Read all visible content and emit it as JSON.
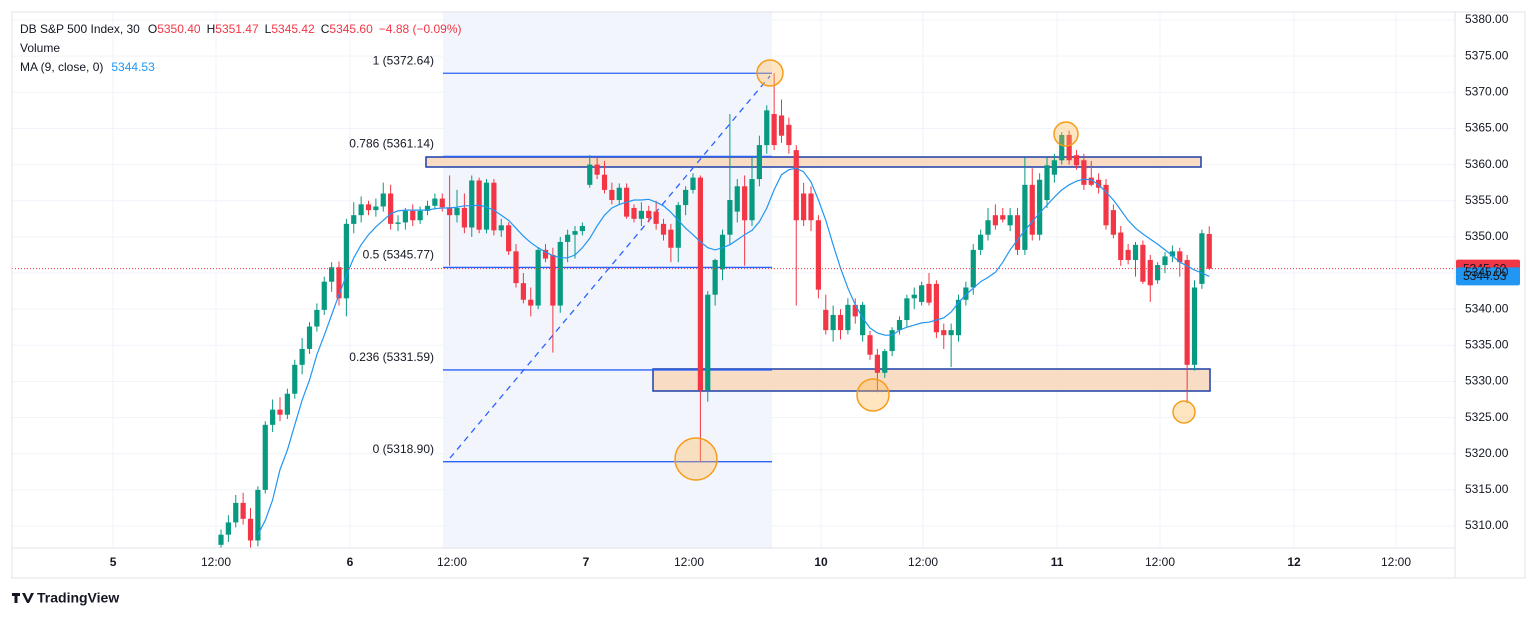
{
  "chart_data": {
    "type": "candlestick",
    "legend": {
      "symbol": "DB S&P 500 Index, 30",
      "ohlc": [
        {
          "key": "O",
          "text": "5350.40"
        },
        {
          "key": "H",
          "text": "5351.47"
        },
        {
          "key": "L",
          "text": "5345.42"
        },
        {
          "key": "C",
          "text": "5345.60"
        }
      ],
      "change": "−4.88 (−0.09%)",
      "value_color": "#f23645",
      "volume": "Volume",
      "ma_name": "MA (9, close, 0)",
      "ma_value": "5344.53"
    },
    "up_color": "#089981",
    "down_color": "#f23645",
    "ma_color": "#2196f3",
    "open": [
      5307.4,
      5308.8,
      5310.5,
      5313.2,
      5311.0,
      5308.0,
      5315.0,
      5324.0,
      5326.1,
      5325.4,
      5328.3,
      5332.3,
      5334.5,
      5337.6,
      5339.9,
      5343.8,
      5345.8,
      5341.5,
      5351.8,
      5353.0,
      5354.5,
      5353.7,
      5354.2,
      5356.0,
      5351.8,
      5352.0,
      5353.6,
      5352.3,
      5353.6,
      5354.3,
      5355.3,
      5354.1,
      5353.0,
      5354.0,
      5351.3,
      5357.8,
      5351.0,
      5357.5,
      5350.9,
      5351.6,
      5348.0,
      5343.6,
      5341.3,
      5340.5,
      5348.2,
      5347.5,
      5340.5,
      5349.3,
      5350.3,
      5350.8,
      5357.2,
      5360.0,
      5358.6,
      5356.5,
      5355.1,
      5356.8,
      5354.0,
      5352.5,
      5353.6,
      5353.5,
      5351.8,
      5351.0,
      5348.5,
      5354.4,
      5356.5,
      5358.2,
      5328.8,
      5342.0,
      5345.5,
      5350.3,
      5353.5,
      5357.0,
      5352.3,
      5358.0,
      5362.7,
      5367.0,
      5366.8,
      5365.5,
      5362.0,
      5356.0,
      5356.0,
      5352.3,
      5339.9,
      5337.1,
      5339.2,
      5337.1,
      5340.6,
      5336.4,
      5336.4,
      5333.7,
      5331.2,
      5334.2,
      5337.1,
      5338.5,
      5341.5,
      5341.0,
      5343.5,
      5343.5,
      5337.1,
      5336.4,
      5336.4,
      5341.3,
      5343.0,
      5348.2,
      5350.3,
      5353.0,
      5353.0,
      5351.6,
      5353.0,
      5348.2,
      5357.2,
      5350.3,
      5355.1,
      5358.6,
      5360.6,
      5364.1,
      5361.3,
      5360.6,
      5358.2,
      5357.9,
      5357.2,
      5353.7,
      5350.6,
      5348.2,
      5346.8,
      5348.9,
      5346.8,
      5344.0,
      5346.1,
      5347.3,
      5348.0,
      5346.8,
      5332.3,
      5343.5,
      5350.4
    ],
    "high": [
      5309.5,
      5311.5,
      5314.3,
      5314.6,
      5312.5,
      5315.5,
      5324.5,
      5327.5,
      5327.8,
      5329.0,
      5333.0,
      5336.0,
      5338.2,
      5340.8,
      5344.5,
      5346.5,
      5346.6,
      5352.5,
      5354.8,
      5355.6,
      5355.0,
      5355.3,
      5357.5,
      5357.2,
      5353.0,
      5354.0,
      5354.5,
      5354.2,
      5355.0,
      5356.0,
      5356.0,
      5358.5,
      5356.5,
      5356.0,
      5358.5,
      5358.2,
      5358.0,
      5358.0,
      5352.5,
      5352.0,
      5349.0,
      5345.0,
      5343.0,
      5348.6,
      5349.0,
      5348.5,
      5350.0,
      5351.0,
      5351.5,
      5352.0,
      5361.3,
      5361.0,
      5360.5,
      5357.5,
      5357.4,
      5357.4,
      5354.5,
      5354.8,
      5354.3,
      5355.0,
      5352.5,
      5351.8,
      5354.8,
      5357.0,
      5358.8,
      5358.5,
      5342.5,
      5347.0,
      5351.0,
      5367.0,
      5358.0,
      5358.5,
      5361.0,
      5364.0,
      5368.2,
      5372.64,
      5369.0,
      5366.5,
      5362.7,
      5357.5,
      5357.0,
      5353.0,
      5342.0,
      5340.5,
      5340.0,
      5341.5,
      5341.5,
      5341.0,
      5337.0,
      5334.5,
      5334.5,
      5337.5,
      5339.0,
      5342.0,
      5343.0,
      5343.8,
      5345.0,
      5344.0,
      5338.0,
      5338.0,
      5342.0,
      5343.8,
      5349.0,
      5351.0,
      5354.0,
      5354.5,
      5354.0,
      5354.0,
      5354.0,
      5361.0,
      5359.5,
      5358.8,
      5361.0,
      5361.5,
      5364.5,
      5364.7,
      5362.0,
      5361.5,
      5360.5,
      5358.8,
      5358.0,
      5354.5,
      5351.5,
      5349.0,
      5349.3,
      5349.5,
      5347.5,
      5346.5,
      5347.9,
      5348.8,
      5348.5,
      5347.5,
      5344.0,
      5351.0,
      5351.47
    ],
    "low": [
      5306.5,
      5307.8,
      5309.8,
      5310.2,
      5307.0,
      5307.2,
      5314.5,
      5323.0,
      5324.5,
      5324.8,
      5327.6,
      5331.0,
      5333.8,
      5336.9,
      5339.2,
      5342.4,
      5340.5,
      5339.0,
      5350.5,
      5352.0,
      5353.0,
      5352.8,
      5353.5,
      5351.0,
      5350.8,
      5351.0,
      5351.5,
      5351.8,
      5353.0,
      5353.8,
      5353.5,
      5346.0,
      5352.0,
      5350.5,
      5350.0,
      5350.5,
      5350.5,
      5350.2,
      5350.0,
      5347.5,
      5343.0,
      5340.8,
      5339.0,
      5340.0,
      5346.5,
      5334.0,
      5339.5,
      5346.5,
      5347.0,
      5350.2,
      5356.8,
      5358.0,
      5356.0,
      5354.5,
      5354.5,
      5352.5,
      5352.0,
      5351.5,
      5352.0,
      5351.0,
      5349.5,
      5346.5,
      5346.5,
      5353.0,
      5356.0,
      5318.9,
      5327.2,
      5340.5,
      5344.0,
      5349.0,
      5352.0,
      5346.0,
      5351.5,
      5357.0,
      5361.5,
      5362.0,
      5363.0,
      5361.5,
      5340.5,
      5351.5,
      5350.8,
      5341.5,
      5336.5,
      5335.5,
      5335.8,
      5336.5,
      5338.0,
      5335.5,
      5333.0,
      5328.5,
      5330.5,
      5333.5,
      5336.5,
      5337.5,
      5340.0,
      5340.5,
      5340.5,
      5336.0,
      5334.5,
      5332.0,
      5335.5,
      5340.5,
      5342.0,
      5347.5,
      5349.5,
      5351.0,
      5352.0,
      5350.8,
      5347.5,
      5347.5,
      5349.5,
      5349.5,
      5354.0,
      5357.5,
      5360.0,
      5360.0,
      5359.3,
      5356.5,
      5357.0,
      5356.0,
      5351.0,
      5349.8,
      5346.0,
      5346.2,
      5344.5,
      5343.5,
      5341.0,
      5343.5,
      5345.0,
      5346.5,
      5344.5,
      5327.0,
      5331.5,
      5342.8,
      5345.42
    ],
    "close": [
      5308.8,
      5310.5,
      5313.2,
      5311.0,
      5308.0,
      5315.0,
      5324.0,
      5326.1,
      5325.4,
      5328.3,
      5332.3,
      5334.5,
      5337.6,
      5339.9,
      5343.8,
      5345.8,
      5341.5,
      5351.8,
      5353.0,
      5354.5,
      5353.7,
      5354.2,
      5356.0,
      5351.8,
      5352.0,
      5353.6,
      5352.3,
      5353.6,
      5354.3,
      5355.3,
      5354.1,
      5353.0,
      5354.0,
      5351.3,
      5357.8,
      5351.0,
      5357.5,
      5350.9,
      5351.6,
      5348.0,
      5343.6,
      5341.3,
      5340.5,
      5348.2,
      5347.0,
      5340.5,
      5349.3,
      5350.3,
      5350.8,
      5351.5,
      5360.0,
      5358.6,
      5356.5,
      5355.1,
      5356.8,
      5352.8,
      5352.5,
      5353.6,
      5352.6,
      5351.8,
      5350.3,
      5348.5,
      5354.4,
      5356.5,
      5358.2,
      5328.8,
      5342.0,
      5346.8,
      5350.3,
      5355.1,
      5357.0,
      5352.3,
      5358.0,
      5362.7,
      5367.5,
      5362.7,
      5364.0,
      5362.7,
      5352.3,
      5352.3,
      5352.3,
      5342.7,
      5337.1,
      5339.2,
      5337.1,
      5340.6,
      5339.0,
      5340.6,
      5333.7,
      5331.2,
      5334.2,
      5337.1,
      5338.5,
      5341.5,
      5342.0,
      5343.3,
      5340.9,
      5336.8,
      5336.4,
      5337.1,
      5341.3,
      5343.0,
      5348.2,
      5350.3,
      5352.3,
      5351.6,
      5352.4,
      5353.0,
      5348.2,
      5357.2,
      5350.3,
      5357.9,
      5359.9,
      5360.6,
      5364.1,
      5360.6,
      5359.9,
      5357.2,
      5357.2,
      5356.8,
      5351.6,
      5350.3,
      5346.8,
      5346.8,
      5348.9,
      5343.8,
      5343.3,
      5346.1,
      5347.3,
      5348.0,
      5346.5,
      5332.3,
      5343.0,
      5350.5,
      5345.6
    ],
    "ma": [
      null,
      null,
      null,
      null,
      null,
      5308.8,
      5310.8,
      5313.6,
      5317.8,
      5320.5,
      5324.0,
      5327.4,
      5330.2,
      5333.7,
      5336.4,
      5339.2,
      5342.0,
      5344.7,
      5347.1,
      5348.9,
      5350.3,
      5351.4,
      5352.3,
      5353.2,
      5353.6,
      5353.7,
      5353.7,
      5353.7,
      5353.7,
      5353.9,
      5354.0,
      5354.0,
      5354.1,
      5354.3,
      5354.3,
      5354.4,
      5354.1,
      5353.7,
      5353.0,
      5352.3,
      5351.2,
      5350.1,
      5349.2,
      5348.5,
      5347.9,
      5347.4,
      5347.1,
      5347.1,
      5347.5,
      5348.5,
      5349.8,
      5351.5,
      5353.0,
      5354.0,
      5354.5,
      5354.8,
      5355.1,
      5355.1,
      5355.2,
      5354.8,
      5354.3,
      5353.4,
      5352.3,
      5351.2,
      5350.3,
      5349.3,
      5348.5,
      5348.2,
      5348.5,
      5348.9,
      5349.6,
      5350.3,
      5350.9,
      5352.1,
      5354.0,
      5356.5,
      5358.6,
      5359.3,
      5359.5,
      5359.0,
      5357.6,
      5355.1,
      5352.3,
      5348.9,
      5345.7,
      5342.9,
      5340.6,
      5338.8,
      5337.4,
      5336.7,
      5336.4,
      5336.4,
      5337.1,
      5337.5,
      5337.8,
      5338.1,
      5338.2,
      5338.5,
      5338.8,
      5339.6,
      5340.9,
      5342.0,
      5342.9,
      5343.8,
      5344.4,
      5345.1,
      5346.5,
      5348.2,
      5349.6,
      5350.9,
      5352.1,
      5353.3,
      5354.4,
      5355.5,
      5356.5,
      5357.2,
      5357.7,
      5358.0,
      5357.9,
      5357.2,
      5356.2,
      5355.1,
      5353.7,
      5352.3,
      5351.2,
      5350.4,
      5349.7,
      5349.0,
      5348.2,
      5347.4,
      5346.5,
      5346.0,
      5345.4,
      5345.0,
      5344.53
    ],
    "ylim": [
      5306.96,
      5381.11
    ],
    "yticks": [
      {
        "value": 5310,
        "label": "5310.00"
      },
      {
        "value": 5315,
        "label": "5315.00"
      },
      {
        "value": 5320,
        "label": "5320.00"
      },
      {
        "value": 5325,
        "label": "5325.00"
      },
      {
        "value": 5330,
        "label": "5330.00"
      },
      {
        "value": 5335,
        "label": "5335.00"
      },
      {
        "value": 5340,
        "label": "5340.00"
      },
      {
        "value": 5345,
        "label": "5345.00"
      },
      {
        "value": 5350,
        "label": "5350.00"
      },
      {
        "value": 5355,
        "label": "5355.00"
      },
      {
        "value": 5360,
        "label": "5360.00"
      },
      {
        "value": 5365,
        "label": "5365.00"
      },
      {
        "value": 5370,
        "label": "5370.00"
      },
      {
        "value": 5375,
        "label": "5375.00"
      },
      {
        "value": 5380,
        "label": "5380.00"
      }
    ],
    "xlim": [
      -28.34,
      167.32
    ],
    "xticks": [
      {
        "value": -14.64,
        "label": "5"
      },
      {
        "value": -0.68,
        "label": "12:00"
      },
      {
        "value": 17.49,
        "label": "6"
      },
      {
        "value": 31.32,
        "label": "12:00"
      },
      {
        "value": 49.49,
        "label": "7"
      },
      {
        "value": 63.46,
        "label": "12:00"
      },
      {
        "value": 81.36,
        "label": "10"
      },
      {
        "value": 95.19,
        "label": "12:00"
      },
      {
        "value": 113.36,
        "label": "11"
      },
      {
        "value": 127.32,
        "label": "12:00"
      },
      {
        "value": 145.49,
        "label": "12"
      },
      {
        "value": 159.32,
        "label": "12:00"
      }
    ],
    "grid": true,
    "price_tags": [
      {
        "value": 5345.6,
        "label": "5345.60",
        "color": "#f23645"
      },
      {
        "value": 5344.53,
        "label": "5344.53",
        "color": "#2196f3"
      }
    ],
    "fib": {
      "color": "#2962ff",
      "levels": [
        {
          "value": 5372.64,
          "label": "1 (5372.64)"
        },
        {
          "value": 5361.14,
          "label": "0.786 (5361.14)"
        },
        {
          "value": 5345.77,
          "label": "0.5 (5345.77)"
        },
        {
          "value": 5331.59,
          "label": "0.236 (5331.59)"
        },
        {
          "value": 5318.9,
          "label": "0 (5318.90)"
        }
      ]
    },
    "footer": "TradingView"
  }
}
